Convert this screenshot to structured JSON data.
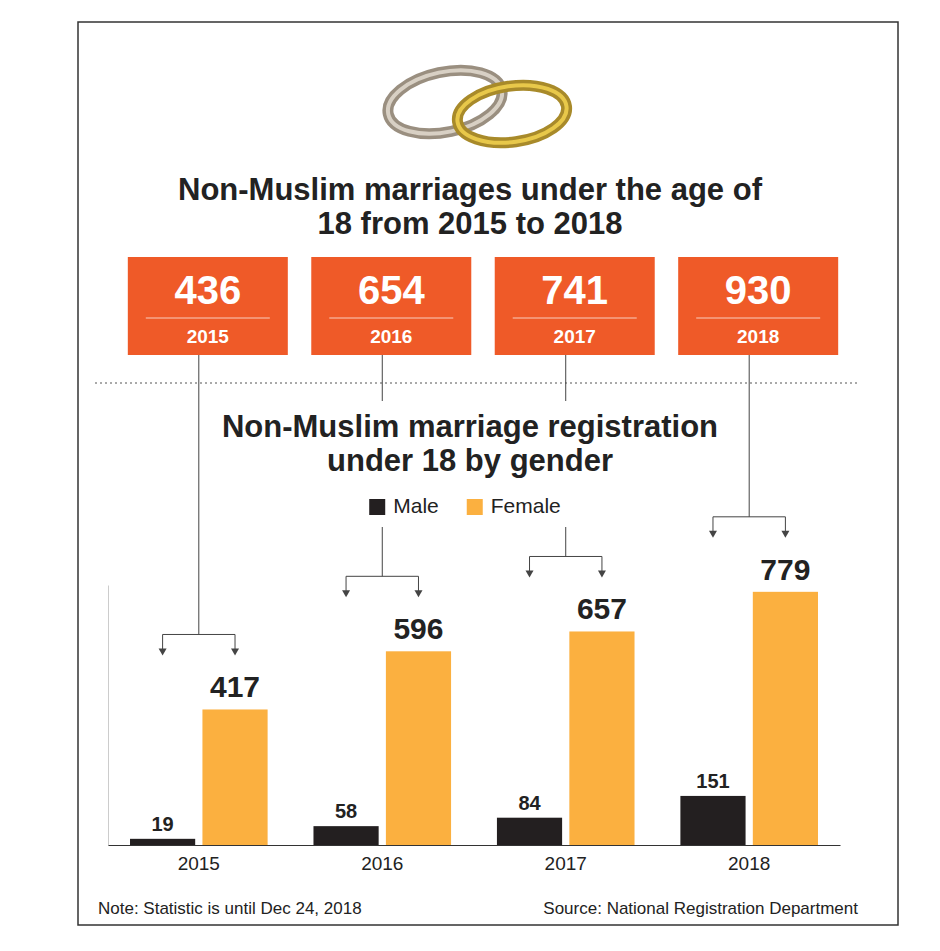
{
  "chart_data": {
    "type": "bar",
    "title": "Non-Muslim marriages under the age of 18 from 2015 to 2018",
    "totals": [
      436,
      654,
      741,
      930
    ],
    "subtitle": "Non-Muslim marriage registration under 18 by gender",
    "categories": [
      "2015",
      "2016",
      "2017",
      "2018"
    ],
    "series": [
      {
        "name": "Male",
        "color": "#231f20",
        "values": [
          19,
          58,
          84,
          151
        ]
      },
      {
        "name": "Female",
        "color": "#fbb040",
        "values": [
          417,
          596,
          657,
          779
        ]
      }
    ],
    "ylim": [
      0,
      800
    ],
    "data_labels": true,
    "tick_labels": "x",
    "legend": "top",
    "note": "Note: Statistic is until Dec 24, 2018",
    "source": "Source: National Registration Department"
  }
}
